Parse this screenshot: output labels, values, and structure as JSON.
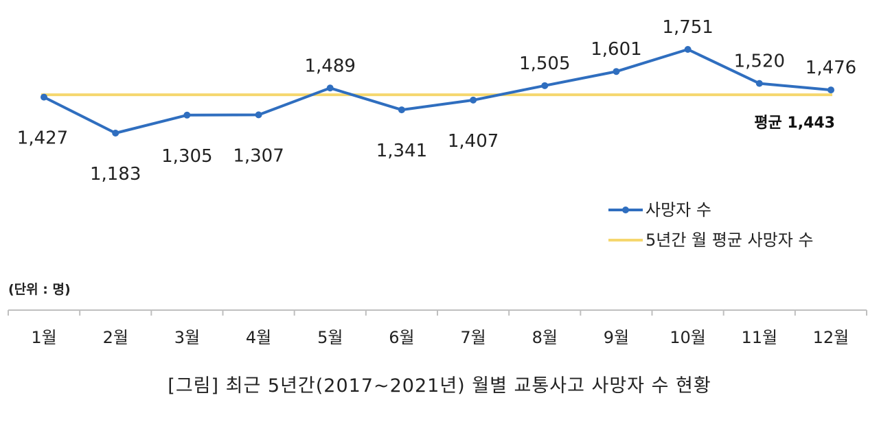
{
  "chart_data": {
    "type": "line",
    "categories": [
      "1월",
      "2월",
      "3월",
      "4월",
      "5월",
      "6월",
      "7월",
      "8월",
      "9월",
      "10월",
      "11월",
      "12월"
    ],
    "series": [
      {
        "name": "사망자 수",
        "values": [
          1427,
          1183,
          1305,
          1307,
          1489,
          1341,
          1407,
          1505,
          1601,
          1751,
          1520,
          1476
        ],
        "color": "#2f6ebf"
      },
      {
        "name": "5년간 월 평균 사망자 수",
        "values": [
          1443,
          1443,
          1443,
          1443,
          1443,
          1443,
          1443,
          1443,
          1443,
          1443,
          1443,
          1443
        ],
        "color": "#f5d76e"
      }
    ],
    "average_label": "평균 1,443",
    "unit_label": "(단위 : 명)",
    "value_labels": [
      "1,427",
      "1,183",
      "1,305",
      "1,307",
      "1,489",
      "1,341",
      "1,407",
      "1,505",
      "1,601",
      "1,751",
      "1,520",
      "1,476"
    ],
    "legend_position": "right",
    "grid": false
  },
  "caption": "[그림] 최근 5년간(2017~2021년) 월별 교통사고 사망자 수 현황"
}
